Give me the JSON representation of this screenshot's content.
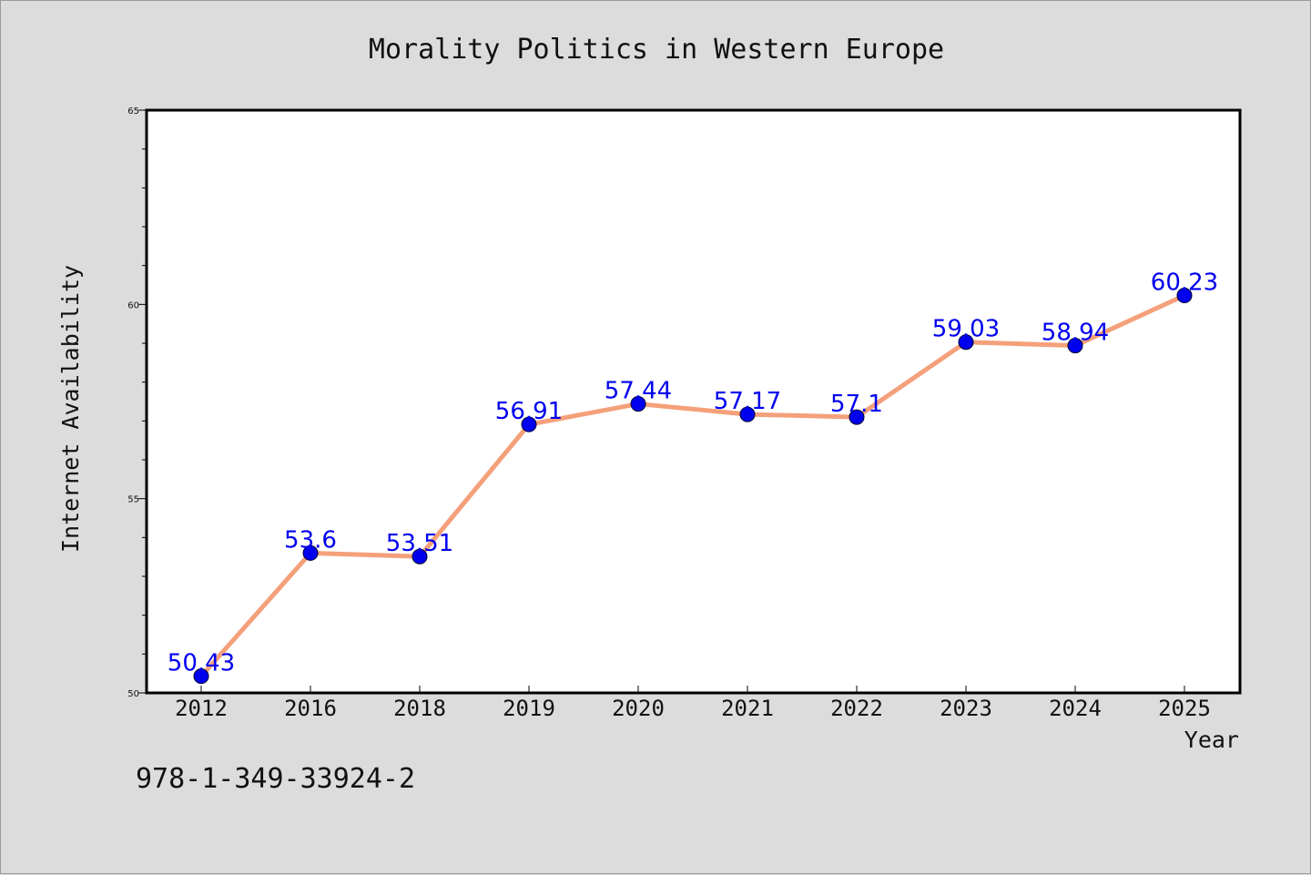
{
  "chart_data": {
    "type": "line",
    "title": "Morality Politics in Western Europe",
    "xlabel": "Year",
    "ylabel": "Internet Availability",
    "categories": [
      "2012",
      "2016",
      "2018",
      "2019",
      "2020",
      "2021",
      "2022",
      "2023",
      "2024",
      "2025"
    ],
    "values": [
      50.43,
      53.6,
      53.51,
      56.91,
      57.44,
      57.17,
      57.1,
      59.03,
      58.94,
      60.23
    ],
    "data_labels": [
      "50.43",
      "53.6",
      "53.51",
      "56.91",
      "57.44",
      "57.17",
      "57.1",
      "59.03",
      "58.94",
      "60.23"
    ],
    "ylim": [
      50,
      65
    ],
    "yticks": [
      "50",
      "55",
      "60",
      "65"
    ],
    "grid": false,
    "line_color": "#f4a07a",
    "marker_color": "#0000ee",
    "label_color": "#0000ee",
    "background": "#dcdcdc",
    "plot_background": "#ffffff"
  },
  "footer": {
    "isbn": "978-1-349-33924-2"
  }
}
